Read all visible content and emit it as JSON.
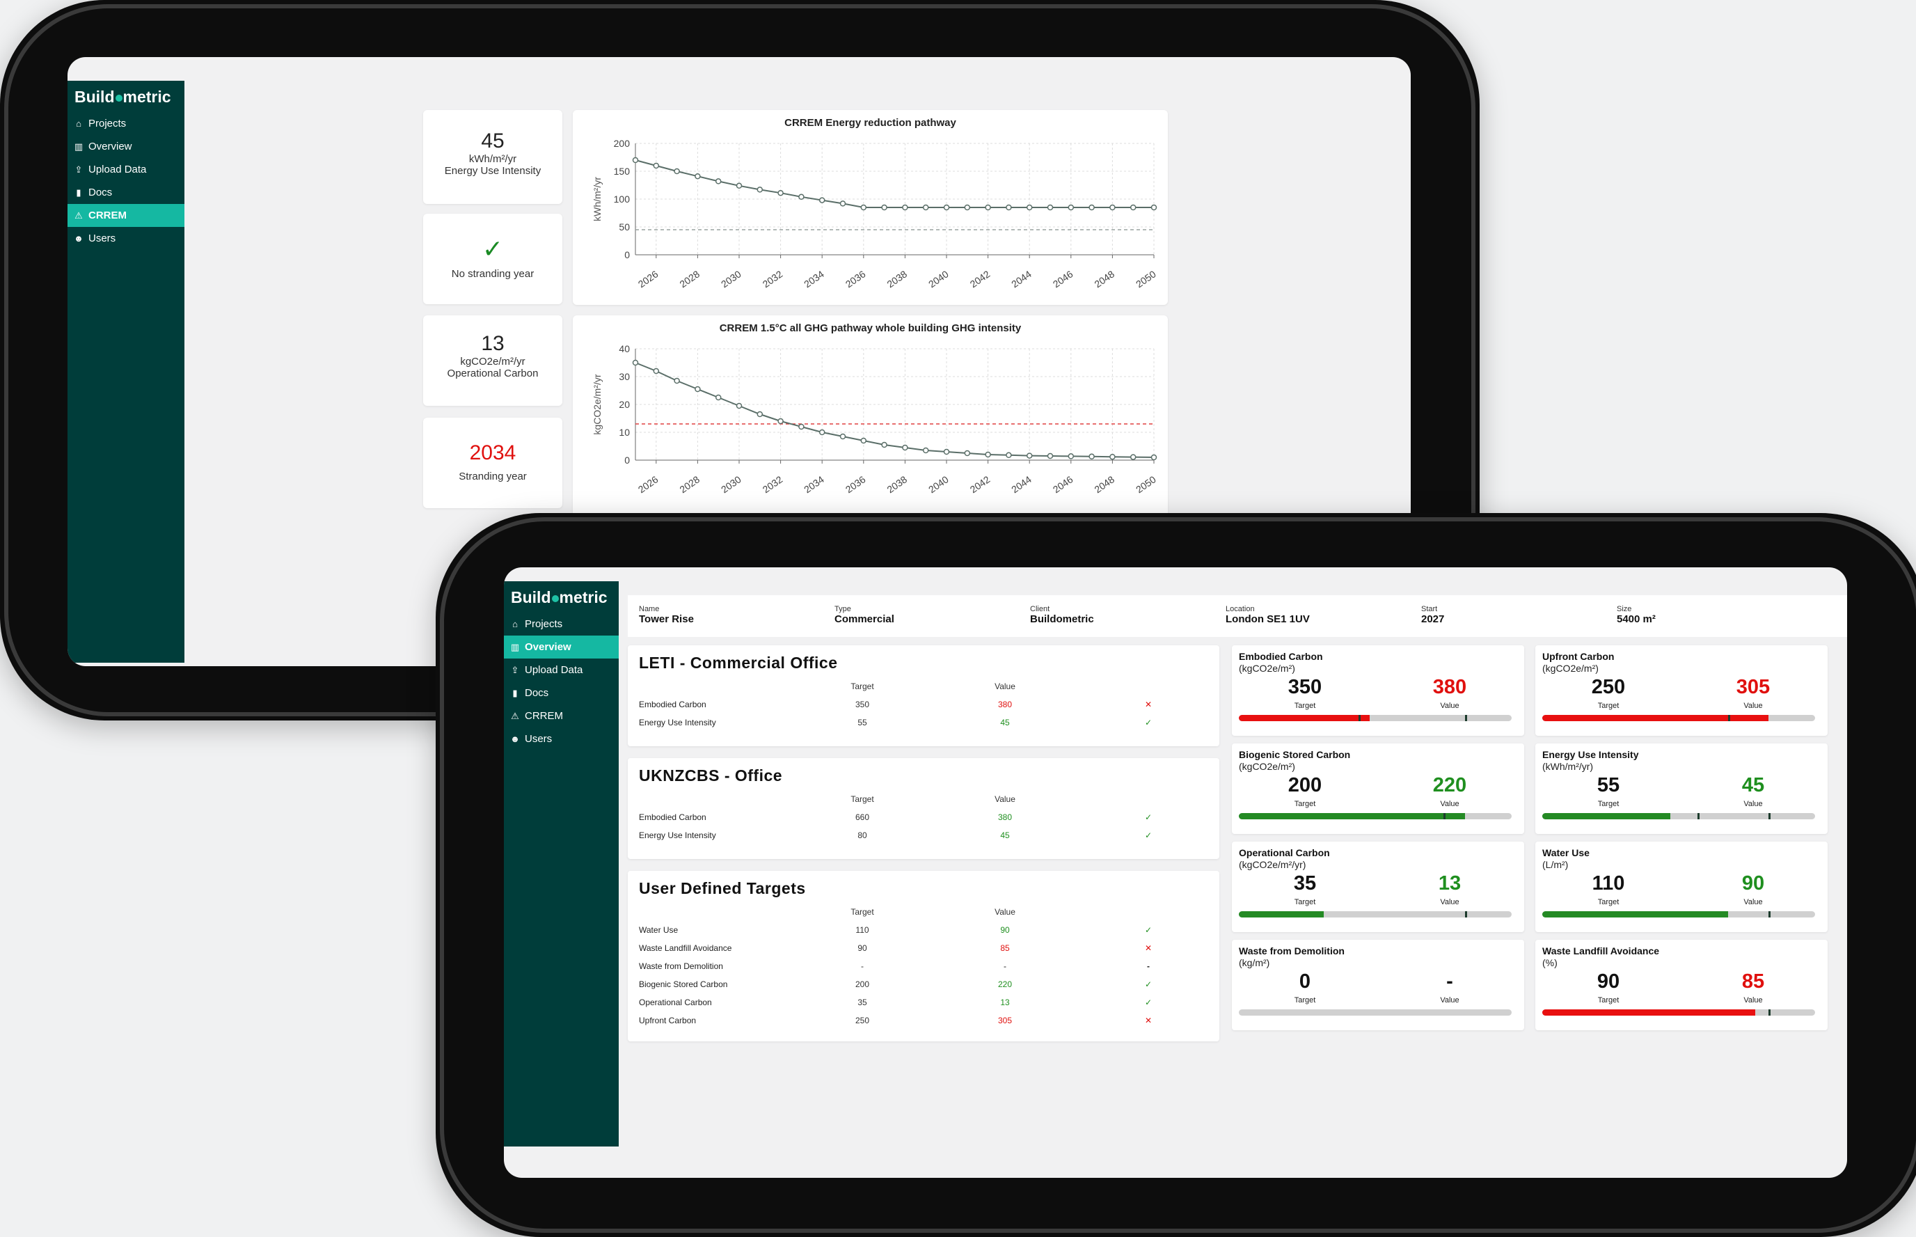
{
  "brand": {
    "pre": "Build",
    "post": "metric"
  },
  "nav": [
    {
      "icon": "home-icon",
      "glyph": "⌂",
      "label": "Projects"
    },
    {
      "icon": "chart-icon",
      "glyph": "▥",
      "label": "Overview"
    },
    {
      "icon": "upload-icon",
      "glyph": "⇪",
      "label": "Upload Data"
    },
    {
      "icon": "document-icon",
      "glyph": "▮",
      "label": "Docs"
    },
    {
      "icon": "warning-icon",
      "glyph": "⚠",
      "label": "CRREM"
    },
    {
      "icon": "users-icon",
      "glyph": "☻",
      "label": "Users"
    }
  ],
  "crrem": {
    "eui": {
      "value": "45",
      "unit": "kWh/m²/yr",
      "label": "Energy Use Intensity"
    },
    "no_strand": {
      "mark": "✓",
      "label": "No stranding year"
    },
    "op_carbon": {
      "value": "13",
      "unit": "kgCO2e/m²/yr",
      "label": "Operational Carbon"
    },
    "strand": {
      "value": "2034",
      "label": "Stranding year"
    }
  },
  "chart_data": [
    {
      "type": "line",
      "title": "CRREM Energy reduction pathway",
      "ylabel": "kWh/m²/yr",
      "x": [
        2025,
        2026,
        2027,
        2028,
        2029,
        2030,
        2031,
        2032,
        2033,
        2034,
        2035,
        2036,
        2037,
        2038,
        2039,
        2040,
        2041,
        2042,
        2043,
        2044,
        2045,
        2046,
        2047,
        2048,
        2049,
        2050
      ],
      "xticks": [
        "2026",
        "2028",
        "2030",
        "2032",
        "2034",
        "2036",
        "2038",
        "2040",
        "2042",
        "2044",
        "2046",
        "2048",
        "2050"
      ],
      "yticks": [
        "0",
        "50",
        "100",
        "150",
        "200"
      ],
      "ylim": [
        0,
        200
      ],
      "series": [
        {
          "values": [
            170,
            160,
            150,
            141,
            132,
            124,
            117,
            111,
            104,
            98,
            92,
            85,
            85,
            85,
            85,
            85,
            85,
            85,
            85,
            85,
            85,
            85,
            85,
            85,
            85,
            85
          ]
        }
      ],
      "reference": {
        "value": 45,
        "color": "#9aa3a0"
      },
      "grid": true
    },
    {
      "type": "line",
      "title": "CRREM 1.5°C all GHG pathway whole building GHG intensity",
      "ylabel": "kgCO2e/m²/yr",
      "x": [
        2025,
        2026,
        2027,
        2028,
        2029,
        2030,
        2031,
        2032,
        2033,
        2034,
        2035,
        2036,
        2037,
        2038,
        2039,
        2040,
        2041,
        2042,
        2043,
        2044,
        2045,
        2046,
        2047,
        2048,
        2049,
        2050
      ],
      "xticks": [
        "2026",
        "2028",
        "2030",
        "2032",
        "2034",
        "2036",
        "2038",
        "2040",
        "2042",
        "2044",
        "2046",
        "2048",
        "2050"
      ],
      "yticks": [
        "0",
        "10",
        "20",
        "30",
        "40"
      ],
      "ylim": [
        0,
        40
      ],
      "series": [
        {
          "values": [
            35,
            32,
            28.5,
            25.5,
            22.5,
            19.5,
            16.5,
            14,
            12,
            10,
            8.5,
            7,
            5.5,
            4.5,
            3.5,
            3,
            2.5,
            2,
            1.8,
            1.6,
            1.5,
            1.4,
            1.3,
            1.2,
            1.1,
            1
          ]
        }
      ],
      "reference": {
        "value": 13,
        "color": "#e04040"
      },
      "grid": true
    }
  ],
  "project": [
    {
      "key": "Name",
      "value": "Tower Rise"
    },
    {
      "key": "Type",
      "value": "Commercial"
    },
    {
      "key": "Client",
      "value": "Buildometric"
    },
    {
      "key": "Location",
      "value": "London SE1 1UV"
    },
    {
      "key": "Start",
      "value": "2027"
    },
    {
      "key": "Size",
      "value": "5400 m²"
    }
  ],
  "tables": [
    {
      "title": "LETI - Commercial Office",
      "col_target": "Target",
      "col_value": "Value",
      "rows": [
        {
          "name": "Embodied Carbon",
          "target": "350",
          "value": "380",
          "status": "✕",
          "ok": false
        },
        {
          "name": "Energy Use Intensity",
          "target": "55",
          "value": "45",
          "status": "✓",
          "ok": true
        }
      ]
    },
    {
      "title": "UKNZCBS - Office",
      "col_target": "Target",
      "col_value": "Value",
      "rows": [
        {
          "name": "Embodied Carbon",
          "target": "660",
          "value": "380",
          "status": "✓",
          "ok": true
        },
        {
          "name": "Energy Use Intensity",
          "target": "80",
          "value": "45",
          "status": "✓",
          "ok": true
        }
      ]
    },
    {
      "title": "User Defined Targets",
      "col_target": "Target",
      "col_value": "Value",
      "rows": [
        {
          "name": "Water Use",
          "target": "110",
          "value": "90",
          "status": "✓",
          "ok": true
        },
        {
          "name": "Waste Landfill Avoidance",
          "target": "90",
          "value": "85",
          "status": "✕",
          "ok": false
        },
        {
          "name": "Waste from Demolition",
          "target": "-",
          "value": "-",
          "status": "-",
          "ok": null
        },
        {
          "name": "Biogenic Stored Carbon",
          "target": "200",
          "value": "220",
          "status": "✓",
          "ok": true
        },
        {
          "name": "Operational Carbon",
          "target": "35",
          "value": "13",
          "status": "✓",
          "ok": true
        },
        {
          "name": "Upfront Carbon",
          "target": "250",
          "value": "305",
          "status": "✕",
          "ok": false
        }
      ]
    }
  ],
  "gauges": [
    {
      "title": "Embodied Carbon",
      "unit": "(kgCO2e/m²)",
      "target": "350",
      "value": "380",
      "target_label": "Target",
      "value_label": "Value",
      "ok": false,
      "fill": 0.48,
      "marks": [
        0.44,
        0.83
      ]
    },
    {
      "title": "Upfront Carbon",
      "unit": "(kgCO2e/m²)",
      "target": "250",
      "value": "305",
      "target_label": "Target",
      "value_label": "Value",
      "ok": false,
      "fill": 0.83,
      "marks": [
        0.68
      ]
    },
    {
      "title": "Biogenic Stored Carbon",
      "unit": "(kgCO2e/m²)",
      "target": "200",
      "value": "220",
      "target_label": "Target",
      "value_label": "Value",
      "ok": true,
      "fill": 0.83,
      "marks": [
        0.75
      ]
    },
    {
      "title": "Energy Use Intensity",
      "unit": "(kWh/m²/yr)",
      "target": "55",
      "value": "45",
      "target_label": "Target",
      "value_label": "Value",
      "ok": true,
      "fill": 0.47,
      "marks": [
        0.57,
        0.83
      ]
    },
    {
      "title": "Operational Carbon",
      "unit": "(kgCO2e/m²/yr)",
      "target": "35",
      "value": "13",
      "target_label": "Target",
      "value_label": "Value",
      "ok": true,
      "fill": 0.31,
      "marks": [
        0.83
      ]
    },
    {
      "title": "Water Use",
      "unit": "(L/m²)",
      "target": "110",
      "value": "90",
      "target_label": "Target",
      "value_label": "Value",
      "ok": true,
      "fill": 0.68,
      "marks": [
        0.83
      ]
    },
    {
      "title": "Waste from Demolition",
      "unit": "(kg/m²)",
      "target": "0",
      "value": "-",
      "target_label": "Target",
      "value_label": "Value",
      "ok": null,
      "fill": 0,
      "marks": []
    },
    {
      "title": "Waste Landfill Avoidance",
      "unit": "(%)",
      "target": "90",
      "value": "85",
      "target_label": "Target",
      "value_label": "Value",
      "ok": false,
      "fill": 0.78,
      "marks": [
        0.83
      ]
    }
  ]
}
